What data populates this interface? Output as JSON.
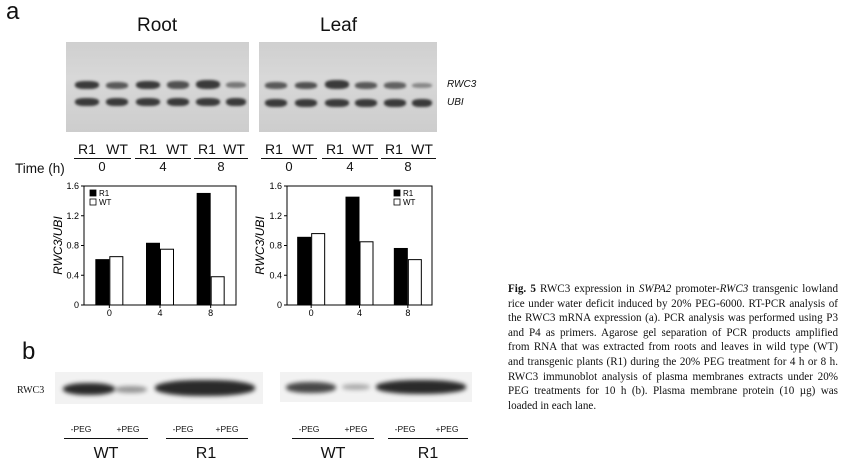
{
  "panel_labels": {
    "a": "a",
    "b": "b"
  },
  "tissues": {
    "root": "Root",
    "leaf": "Leaf"
  },
  "genes": {
    "rwc3": "RWC3",
    "ubi": "UBI"
  },
  "lanes": [
    "R1",
    "WT"
  ],
  "time_label": "Time (h)",
  "times": [
    "0",
    "4",
    "8"
  ],
  "chart_data": [
    {
      "type": "bar",
      "title": "",
      "ylabel": "RWC3/UBI",
      "xlabel": "Time (h)",
      "categories": [
        "0",
        "4",
        "8"
      ],
      "ylim": [
        0,
        1.6
      ],
      "yticks": [
        "0",
        "0.4",
        "0.8",
        "1.2",
        "1.6"
      ],
      "legend_position": "top-left",
      "series": [
        {
          "name": "R1",
          "color": "#000000",
          "values": [
            0.61,
            0.83,
            1.5
          ]
        },
        {
          "name": "WT",
          "color": "#ffffff",
          "values": [
            0.65,
            0.75,
            0.38
          ]
        }
      ]
    },
    {
      "type": "bar",
      "title": "",
      "ylabel": "RWC3/UBI",
      "xlabel": "Time (h)",
      "categories": [
        "0",
        "4",
        "8"
      ],
      "ylim": [
        0,
        1.6
      ],
      "yticks": [
        "0",
        "0.4",
        "0.8",
        "1.2",
        "1.6"
      ],
      "legend_position": "top-right",
      "series": [
        {
          "name": "R1",
          "color": "#000000",
          "values": [
            0.91,
            1.45,
            0.76
          ]
        },
        {
          "name": "WT",
          "color": "#ffffff",
          "values": [
            0.96,
            0.85,
            0.61
          ]
        }
      ]
    }
  ],
  "blot": {
    "protein": "RWC3",
    "treatments": [
      "-PEG",
      "+PEG"
    ],
    "genotypes": [
      "WT",
      "R1"
    ]
  },
  "caption": {
    "fig": "Fig. 5",
    "t1": "  RWC3 expression in ",
    "gene1": "SWPA2",
    "t2": " promoter-",
    "gene2": "RWC3",
    "t3": " transgenic lowland rice under water deficit induced by 20% PEG-6000. RT-PCR analysis of the RWC3 mRNA expression (a). PCR analysis was performed using P3 and P4 as primers. Agarose gel separation of PCR products amplified from RNA that was extracted from roots and leaves in wild type (WT) and transgenic plants (R1) during the 20% PEG treatment for 4 h or 8 h. RWC3 immunoblot analysis of plasma membranes extracts under 20% PEG treatments for 10 h (b). Plasma membrane protein (10 µg) was loaded in each lane."
  }
}
